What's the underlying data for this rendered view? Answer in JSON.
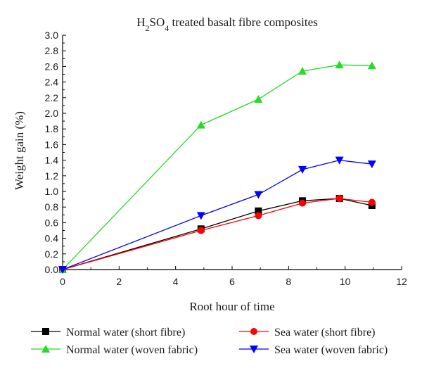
{
  "chart_data": {
    "type": "line",
    "title": {
      "prefix": "H",
      "sub1": "2",
      "mid": "SO",
      "sub2": "4",
      "suffix": " treated basalt fibre composites"
    },
    "xlabel": "Root hour of time",
    "ylabel": "Weight gain (%)",
    "xlim": [
      0,
      12
    ],
    "ylim": [
      0,
      3.0
    ],
    "x_ticks": [
      0,
      2,
      4,
      6,
      8,
      10,
      12
    ],
    "x_tick_labels": [
      "0",
      "2",
      "4",
      "6",
      "8",
      "10",
      "12"
    ],
    "y_ticks": [
      0,
      0.2,
      0.4,
      0.6,
      0.8,
      1.0,
      1.2,
      1.4,
      1.6,
      1.8,
      2.0,
      2.2,
      2.4,
      2.6,
      2.8,
      3.0
    ],
    "y_tick_labels": [
      "0.0",
      "0.2",
      "0.4",
      "0.6",
      "0.8",
      "1.0",
      "1.2",
      "1.4",
      "1.6",
      "1.8",
      "2.0",
      "2.2",
      "2.4",
      "2.6",
      "2.8",
      "3.0"
    ],
    "grid": false,
    "legend_position": "bottom",
    "series": [
      {
        "name": "Normal water (short fibre)",
        "color": "#000000",
        "marker": "square",
        "x": [
          0,
          4.9,
          6.93,
          8.49,
          9.8,
          10.95
        ],
        "y": [
          0,
          0.52,
          0.75,
          0.88,
          0.91,
          0.82
        ]
      },
      {
        "name": "Sea water (short fibre)",
        "color": "#ff0000",
        "marker": "circle",
        "x": [
          0,
          4.9,
          6.93,
          8.49,
          9.8,
          10.95
        ],
        "y": [
          0,
          0.5,
          0.69,
          0.85,
          0.91,
          0.86
        ]
      },
      {
        "name": "Normal water (woven fabric)",
        "color": "#22dd22",
        "marker": "triangle-up",
        "x": [
          0,
          4.9,
          6.93,
          8.49,
          9.8,
          10.95
        ],
        "y": [
          0,
          1.85,
          2.18,
          2.54,
          2.62,
          2.61
        ]
      },
      {
        "name": "Sea water (woven fabric)",
        "color": "#0000ff",
        "marker": "triangle-down",
        "x": [
          0,
          4.9,
          6.93,
          8.49,
          9.8,
          10.95
        ],
        "y": [
          0,
          0.69,
          0.96,
          1.28,
          1.4,
          1.35
        ]
      }
    ]
  }
}
